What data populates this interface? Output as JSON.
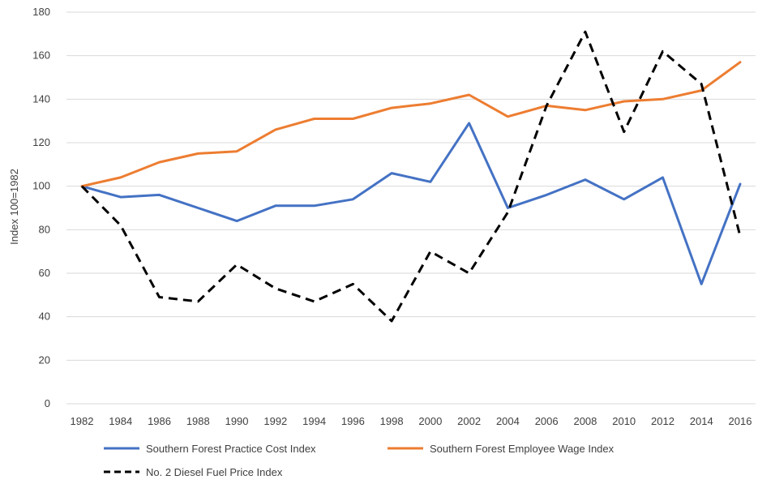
{
  "chart_data": {
    "type": "line",
    "title": "",
    "xlabel": "",
    "ylabel": "Index 100=1982",
    "x": [
      "1982",
      "1984",
      "1986",
      "1988",
      "1990",
      "1992",
      "1994",
      "1996",
      "1998",
      "2000",
      "2002",
      "2004",
      "2006",
      "2008",
      "2010",
      "2012",
      "2014",
      "2016"
    ],
    "ylim": [
      0,
      180
    ],
    "yticks": [
      0,
      20,
      40,
      60,
      80,
      100,
      120,
      140,
      160,
      180
    ],
    "grid": "horizontal",
    "legend": "bottom",
    "series": [
      {
        "name": "Southern Forest Practice Cost Index",
        "color": "#4472c4",
        "dash": "solid",
        "values": [
          100,
          95,
          96,
          90,
          84,
          91,
          91,
          94,
          106,
          102,
          129,
          90,
          96,
          103,
          94,
          104,
          55,
          101
        ]
      },
      {
        "name": "Southern Forest Employee Wage Index",
        "color": "#ed7d31",
        "dash": "solid",
        "values": [
          100,
          104,
          111,
          115,
          116,
          126,
          131,
          131,
          136,
          138,
          142,
          132,
          137,
          135,
          139,
          140,
          144,
          157
        ]
      },
      {
        "name": "No. 2 Diesel Fuel Price Index",
        "color": "#000000",
        "dash": "dashed",
        "values": [
          100,
          82,
          49,
          47,
          64,
          53,
          47,
          55,
          38,
          70,
          60,
          88,
          137,
          171,
          125,
          162,
          147,
          77
        ]
      }
    ]
  }
}
